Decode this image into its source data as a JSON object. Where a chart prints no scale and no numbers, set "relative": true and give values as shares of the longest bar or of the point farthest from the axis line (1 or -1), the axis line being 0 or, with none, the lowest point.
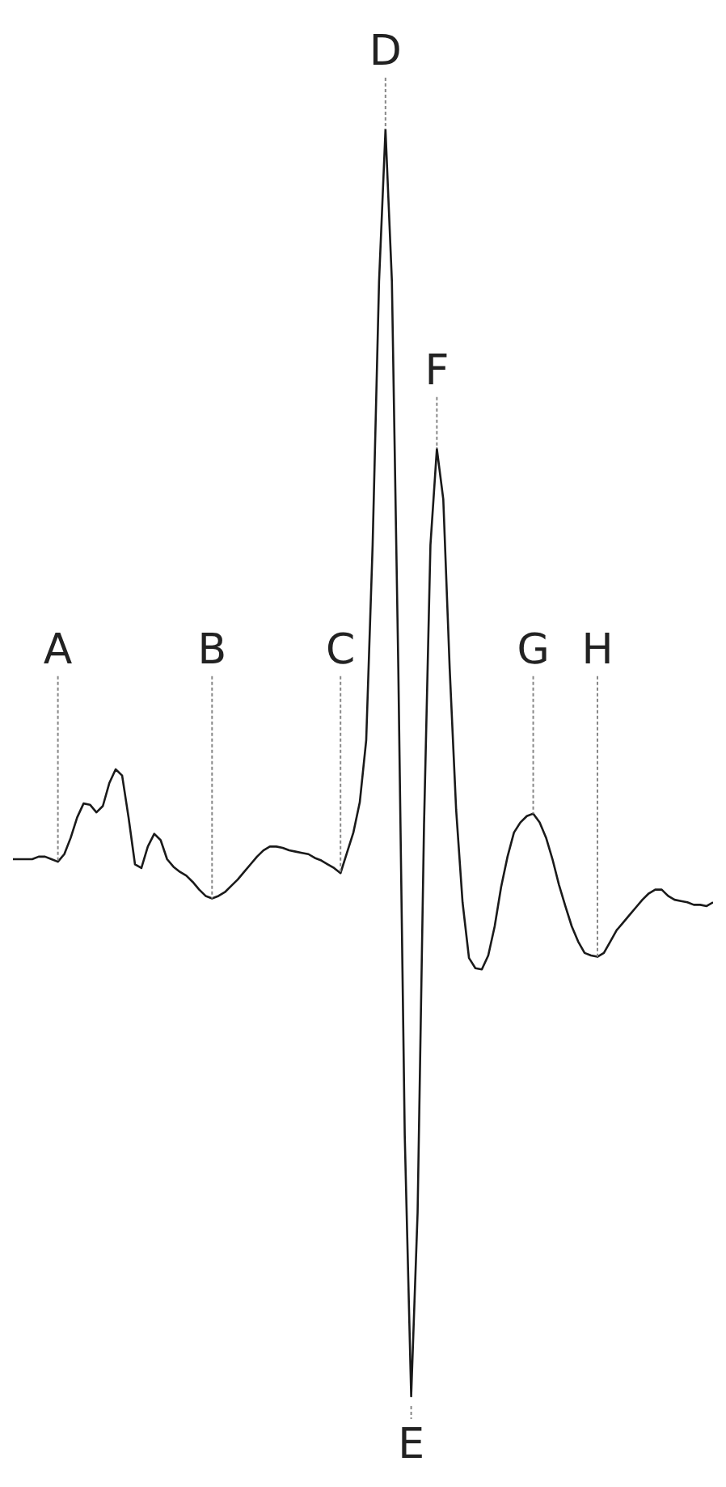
{
  "chart_data": {
    "type": "line",
    "relative": true,
    "categories": [
      null,
      null,
      null,
      null,
      null,
      null,
      null,
      null,
      null,
      null,
      null,
      null,
      null,
      null,
      null,
      null,
      null,
      null,
      null,
      null,
      null,
      null,
      null,
      null,
      null,
      null,
      null,
      null,
      null,
      null,
      null,
      null,
      null,
      null,
      null,
      null,
      null,
      null,
      null,
      null,
      null,
      null,
      null,
      null,
      null,
      null,
      null,
      null,
      null,
      null,
      null,
      null,
      null,
      null,
      null,
      null,
      null,
      null,
      null,
      null,
      null,
      null,
      null,
      null,
      null,
      null,
      null,
      null,
      null,
      null,
      null,
      null,
      null,
      null,
      null,
      null,
      null,
      null,
      null,
      null,
      null,
      null,
      null,
      null,
      null,
      null,
      null,
      null,
      null,
      null,
      null,
      null,
      null,
      null,
      null,
      null,
      null,
      null,
      null,
      null,
      null,
      null,
      null,
      null,
      null,
      null,
      null,
      null,
      null,
      null
    ],
    "series": [
      {
        "color": "#1a1a1a",
        "values": [
          0.424,
          0.424,
          0.424,
          0.424,
          0.426,
          0.426,
          0.424,
          0.422,
          0.428,
          0.441,
          0.457,
          0.468,
          0.467,
          0.461,
          0.466,
          0.484,
          0.495,
          0.49,
          0.457,
          0.42,
          0.417,
          0.434,
          0.444,
          0.439,
          0.424,
          0.418,
          0.414,
          0.411,
          0.406,
          0.4,
          0.395,
          0.393,
          0.395,
          0.398,
          0.403,
          0.408,
          0.414,
          0.42,
          0.426,
          0.431,
          0.434,
          0.434,
          0.433,
          0.431,
          0.43,
          0.429,
          0.428,
          0.425,
          0.423,
          0.42,
          0.417,
          0.413,
          0.429,
          0.445,
          0.469,
          0.518,
          0.672,
          0.88,
          1,
          0.88,
          0.574,
          0.206,
          0,
          0.145,
          0.451,
          0.672,
          0.748,
          0.708,
          0.574,
          0.463,
          0.39,
          0.346,
          0.338,
          0.337,
          0.348,
          0.371,
          0.402,
          0.426,
          0.445,
          0.453,
          0.458,
          0.46,
          0.453,
          0.441,
          0.424,
          0.404,
          0.387,
          0.371,
          0.359,
          0.35,
          0.348,
          0.347,
          0.35,
          0.359,
          0.368,
          0.374,
          0.38,
          0.386,
          0.392,
          0.397,
          0.4,
          0.4,
          0.395,
          0.392,
          0.391,
          0.39,
          0.388,
          0.388,
          0.387,
          0.39
        ]
      }
    ],
    "annotations": [
      {
        "text": "A",
        "y": 0.422
      },
      {
        "text": "B",
        "y": 0.393
      },
      {
        "text": "C",
        "y": 0.413
      },
      {
        "text": "D",
        "y": 1
      },
      {
        "text": "E",
        "y": 0
      },
      {
        "text": "F",
        "y": 0.748
      },
      {
        "text": "G",
        "y": 0.46
      },
      {
        "text": "H",
        "y": 0.347
      }
    ]
  }
}
